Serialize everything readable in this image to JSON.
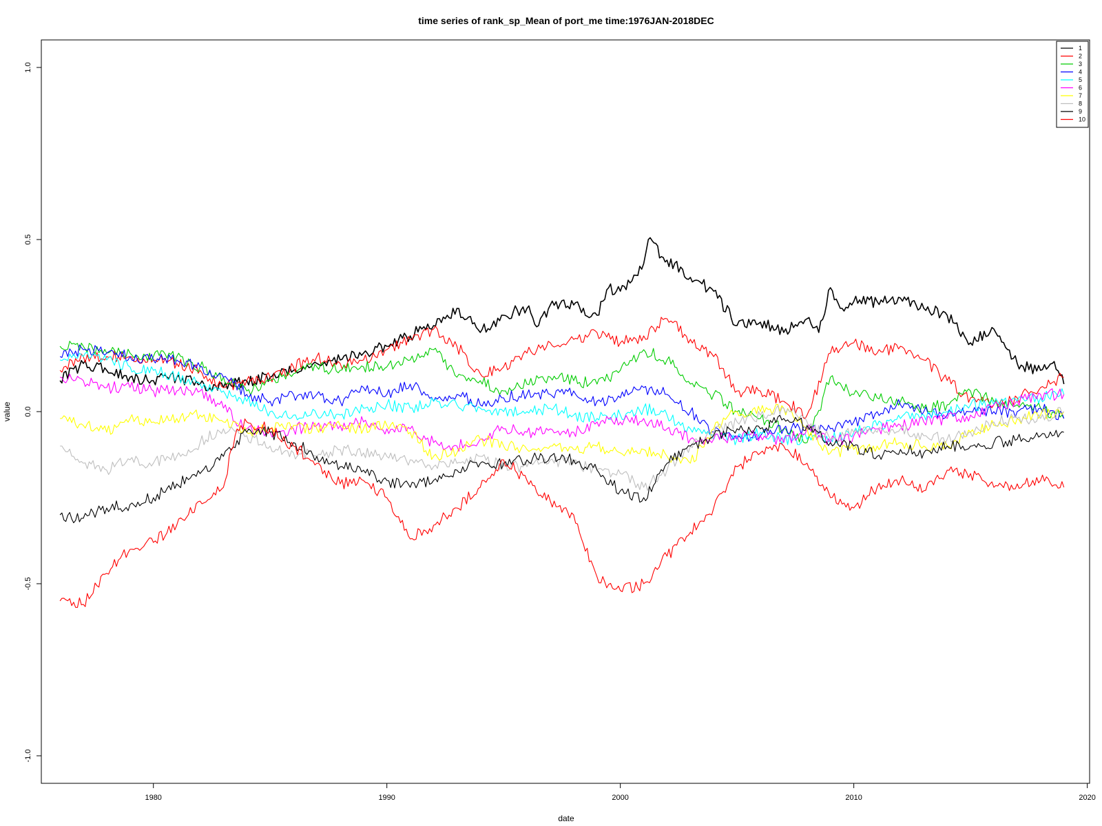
{
  "chart_data": {
    "type": "line",
    "title": "time series of rank_sp_Mean of port_me time:1976JAN-2018DEC",
    "xlabel": "date",
    "ylabel": "value",
    "xlim": [
      1975.2,
      2020.1
    ],
    "ylim": [
      -1.08,
      1.08
    ],
    "x_ticks": [
      1980,
      1990,
      2000,
      2010,
      2020
    ],
    "y_ticks": [
      -1.0,
      -0.5,
      0.0,
      0.5,
      1.0
    ],
    "legend_position": "top-right",
    "grid": false,
    "series": [
      {
        "name": "1",
        "color": "#000000",
        "stroke_width": 1.6,
        "x": [
          1976.0,
          1977.0,
          1978.0,
          1979.0,
          1980.0,
          1981.0,
          1982.0,
          1983.0,
          1984.0,
          1985.0,
          1986.0,
          1987.0,
          1988.0,
          1989.0,
          1990.0,
          1991.0,
          1991.5,
          1992.0,
          1992.5,
          1993.0,
          1994.0,
          1995.0,
          1996.0,
          1996.5,
          1997.0,
          1998.0,
          1999.0,
          1999.5,
          2000.0,
          2000.5,
          2001.0,
          2001.2,
          2002.0,
          2003.0,
          2004.0,
          2005.0,
          2006.0,
          2007.0,
          2008.0,
          2008.5,
          2009.0,
          2009.5,
          2010.0,
          2011.0,
          2012.0,
          2013.0,
          2014.0,
          2015.0,
          2016.0,
          2017.0,
          2018.0,
          2018.5,
          2019.0
        ],
        "y": [
          0.09,
          0.14,
          0.12,
          0.1,
          0.09,
          0.1,
          0.08,
          0.07,
          0.09,
          0.1,
          0.12,
          0.14,
          0.15,
          0.17,
          0.19,
          0.22,
          0.24,
          0.25,
          0.27,
          0.3,
          0.23,
          0.28,
          0.3,
          0.25,
          0.31,
          0.31,
          0.28,
          0.36,
          0.35,
          0.38,
          0.43,
          0.5,
          0.44,
          0.39,
          0.35,
          0.25,
          0.26,
          0.23,
          0.27,
          0.23,
          0.36,
          0.3,
          0.32,
          0.32,
          0.33,
          0.3,
          0.28,
          0.2,
          0.24,
          0.14,
          0.12,
          0.14,
          0.08
        ]
      },
      {
        "name": "2",
        "color": "#ff0000",
        "stroke_width": 1.1,
        "x": [
          1976.0,
          1977.0,
          1978.0,
          1979.0,
          1980.0,
          1981.0,
          1982.0,
          1983.0,
          1984.0,
          1985.0,
          1986.0,
          1987.0,
          1988.0,
          1989.0,
          1990.0,
          1991.0,
          1992.0,
          1993.0,
          1994.0,
          1995.0,
          1996.0,
          1997.0,
          1998.0,
          1999.0,
          2000.0,
          2001.0,
          2002.0,
          2003.0,
          2004.0,
          2005.0,
          2006.0,
          2007.0,
          2008.0,
          2009.0,
          2010.0,
          2011.0,
          2012.0,
          2013.0,
          2014.0,
          2015.0,
          2016.0,
          2017.0,
          2018.0,
          2019.0
        ],
        "y": [
          0.12,
          0.16,
          0.16,
          0.16,
          0.15,
          0.14,
          0.12,
          0.07,
          0.09,
          0.1,
          0.13,
          0.16,
          0.14,
          0.15,
          0.18,
          0.21,
          0.24,
          0.19,
          0.11,
          0.13,
          0.17,
          0.2,
          0.21,
          0.23,
          0.2,
          0.22,
          0.27,
          0.21,
          0.16,
          0.06,
          0.06,
          0.03,
          -0.01,
          0.17,
          0.2,
          0.17,
          0.19,
          0.15,
          0.09,
          0.04,
          0.02,
          0.04,
          0.07,
          0.1
        ]
      },
      {
        "name": "3",
        "color": "#00cc00",
        "stroke_width": 1.1,
        "x": [
          1976.0,
          1977.0,
          1978.0,
          1979.0,
          1980.0,
          1981.0,
          1982.0,
          1983.0,
          1984.0,
          1985.0,
          1986.0,
          1987.0,
          1988.0,
          1989.0,
          1990.0,
          1991.0,
          1992.0,
          1993.0,
          1994.0,
          1995.0,
          1996.0,
          1997.0,
          1998.0,
          1999.0,
          2000.0,
          2001.0,
          2002.0,
          2003.0,
          2004.0,
          2005.0,
          2006.0,
          2007.0,
          2008.0,
          2009.0,
          2010.0,
          2011.0,
          2012.0,
          2013.0,
          2014.0,
          2015.0,
          2016.0,
          2017.0,
          2018.0,
          2019.0
        ],
        "y": [
          0.19,
          0.19,
          0.17,
          0.17,
          0.16,
          0.16,
          0.13,
          0.1,
          0.06,
          0.09,
          0.11,
          0.13,
          0.12,
          0.13,
          0.13,
          0.15,
          0.18,
          0.1,
          0.09,
          0.06,
          0.08,
          0.1,
          0.09,
          0.08,
          0.12,
          0.18,
          0.15,
          0.08,
          0.05,
          0.0,
          -0.02,
          -0.05,
          -0.09,
          0.1,
          0.05,
          0.04,
          0.03,
          0.01,
          0.02,
          0.06,
          0.03,
          0.02,
          0.01,
          -0.02
        ]
      },
      {
        "name": "4",
        "color": "#0000ff",
        "stroke_width": 1.1,
        "x": [
          1976.0,
          1977.0,
          1978.0,
          1979.0,
          1980.0,
          1981.0,
          1982.0,
          1983.0,
          1984.0,
          1985.0,
          1986.0,
          1987.0,
          1988.0,
          1989.0,
          1990.0,
          1991.0,
          1992.0,
          1993.0,
          1994.0,
          1995.0,
          1996.0,
          1997.0,
          1998.0,
          1999.0,
          2000.0,
          2001.0,
          2002.0,
          2003.0,
          2004.0,
          2005.0,
          2006.0,
          2007.0,
          2008.0,
          2009.0,
          2010.0,
          2011.0,
          2012.0,
          2013.0,
          2014.0,
          2015.0,
          2016.0,
          2017.0,
          2018.0,
          2019.0
        ],
        "y": [
          0.16,
          0.18,
          0.17,
          0.16,
          0.15,
          0.15,
          0.13,
          0.1,
          0.05,
          0.03,
          0.05,
          0.05,
          0.03,
          0.07,
          0.05,
          0.08,
          0.03,
          0.05,
          0.02,
          0.04,
          0.05,
          0.05,
          0.06,
          0.03,
          0.04,
          0.07,
          0.05,
          0.0,
          -0.06,
          -0.08,
          -0.07,
          -0.05,
          -0.05,
          -0.05,
          -0.03,
          0.0,
          0.02,
          0.0,
          -0.01,
          0.0,
          0.0,
          0.0,
          0.01,
          -0.02
        ]
      },
      {
        "name": "5",
        "color": "#00ffff",
        "stroke_width": 1.1,
        "x": [
          1976.0,
          1977.0,
          1978.0,
          1979.0,
          1980.0,
          1981.0,
          1982.0,
          1983.0,
          1984.0,
          1985.0,
          1986.0,
          1987.0,
          1988.0,
          1989.0,
          1990.0,
          1991.0,
          1992.0,
          1993.0,
          1994.0,
          1995.0,
          1996.0,
          1997.0,
          1998.0,
          1999.0,
          2000.0,
          2001.0,
          2002.0,
          2003.0,
          2004.0,
          2005.0,
          2006.0,
          2007.0,
          2008.0,
          2009.0,
          2010.0,
          2011.0,
          2012.0,
          2013.0,
          2014.0,
          2015.0,
          2016.0,
          2017.0,
          2018.0,
          2019.0
        ],
        "y": [
          0.15,
          0.16,
          0.15,
          0.13,
          0.12,
          0.1,
          0.08,
          0.06,
          0.03,
          0.0,
          -0.01,
          -0.01,
          -0.01,
          0.01,
          0.02,
          0.01,
          0.03,
          0.02,
          0.01,
          0.0,
          0.0,
          0.01,
          -0.01,
          -0.02,
          -0.01,
          0.01,
          -0.01,
          -0.05,
          -0.08,
          -0.08,
          -0.06,
          -0.08,
          -0.08,
          -0.08,
          -0.06,
          -0.04,
          -0.02,
          -0.01,
          0.0,
          0.02,
          0.02,
          0.03,
          0.04,
          0.05
        ]
      },
      {
        "name": "6",
        "color": "#ff00ff",
        "stroke_width": 1.1,
        "x": [
          1976.0,
          1977.0,
          1978.0,
          1979.0,
          1980.0,
          1981.0,
          1982.0,
          1983.0,
          1984.0,
          1985.0,
          1986.0,
          1987.0,
          1988.0,
          1989.0,
          1990.0,
          1991.0,
          1992.0,
          1993.0,
          1994.0,
          1995.0,
          1996.0,
          1997.0,
          1998.0,
          1999.0,
          2000.0,
          2001.0,
          2002.0,
          2003.0,
          2004.0,
          2005.0,
          2006.0,
          2007.0,
          2008.0,
          2009.0,
          2010.0,
          2011.0,
          2012.0,
          2013.0,
          2014.0,
          2015.0,
          2016.0,
          2017.0,
          2018.0,
          2019.0
        ],
        "y": [
          0.1,
          0.09,
          0.07,
          0.07,
          0.06,
          0.06,
          0.06,
          0.01,
          -0.05,
          -0.06,
          -0.05,
          -0.04,
          -0.04,
          -0.03,
          -0.05,
          -0.05,
          -0.09,
          -0.1,
          -0.08,
          -0.05,
          -0.06,
          -0.05,
          -0.06,
          -0.03,
          -0.03,
          -0.02,
          -0.05,
          -0.08,
          -0.08,
          -0.07,
          -0.07,
          -0.09,
          -0.05,
          -0.09,
          -0.07,
          -0.05,
          -0.04,
          -0.03,
          -0.02,
          -0.01,
          0.02,
          0.03,
          0.05,
          0.05
        ]
      },
      {
        "name": "7",
        "color": "#ffff00",
        "stroke_width": 1.1,
        "x": [
          1976.0,
          1977.0,
          1978.0,
          1979.0,
          1980.0,
          1981.0,
          1982.0,
          1983.0,
          1984.0,
          1985.0,
          1986.0,
          1987.0,
          1988.0,
          1989.0,
          1990.0,
          1991.0,
          1992.0,
          1993.0,
          1994.0,
          1995.0,
          1996.0,
          1997.0,
          1998.0,
          1999.0,
          2000.0,
          2001.0,
          2002.0,
          2003.0,
          2004.0,
          2005.0,
          2006.0,
          2007.0,
          2008.0,
          2009.0,
          2010.0,
          2011.0,
          2012.0,
          2013.0,
          2014.0,
          2015.0,
          2016.0,
          2017.0,
          2018.0,
          2019.0
        ],
        "y": [
          -0.02,
          -0.04,
          -0.06,
          -0.02,
          -0.03,
          -0.02,
          -0.01,
          -0.03,
          -0.06,
          -0.05,
          -0.04,
          -0.05,
          -0.04,
          -0.05,
          -0.04,
          -0.06,
          -0.13,
          -0.12,
          -0.08,
          -0.1,
          -0.11,
          -0.1,
          -0.11,
          -0.1,
          -0.12,
          -0.11,
          -0.13,
          -0.15,
          -0.05,
          0.0,
          0.0,
          0.01,
          -0.05,
          -0.12,
          -0.11,
          -0.1,
          -0.09,
          -0.1,
          -0.1,
          -0.06,
          -0.04,
          -0.02,
          -0.01,
          0.0
        ]
      },
      {
        "name": "8",
        "color": "#bebebe",
        "stroke_width": 1.1,
        "x": [
          1976.0,
          1977.0,
          1978.0,
          1979.0,
          1980.0,
          1981.0,
          1982.0,
          1983.0,
          1984.0,
          1985.0,
          1986.0,
          1987.0,
          1988.0,
          1989.0,
          1990.0,
          1991.0,
          1992.0,
          1993.0,
          1994.0,
          1995.0,
          1996.0,
          1997.0,
          1998.0,
          1999.0,
          2000.0,
          2001.0,
          2002.0,
          2003.0,
          2004.0,
          2005.0,
          2006.0,
          2007.0,
          2008.0,
          2009.0,
          2010.0,
          2011.0,
          2012.0,
          2013.0,
          2014.0,
          2015.0,
          2016.0,
          2017.0,
          2018.0,
          2019.0
        ],
        "y": [
          -0.1,
          -0.15,
          -0.17,
          -0.14,
          -0.15,
          -0.13,
          -0.09,
          -0.05,
          -0.07,
          -0.1,
          -0.12,
          -0.13,
          -0.11,
          -0.12,
          -0.13,
          -0.14,
          -0.16,
          -0.15,
          -0.13,
          -0.16,
          -0.16,
          -0.14,
          -0.15,
          -0.17,
          -0.18,
          -0.22,
          -0.17,
          -0.1,
          -0.06,
          -0.03,
          -0.01,
          0.01,
          -0.03,
          -0.08,
          -0.06,
          -0.06,
          -0.05,
          -0.07,
          -0.08,
          -0.06,
          -0.03,
          -0.02,
          -0.02,
          0.0
        ]
      },
      {
        "name": "9",
        "color": "#000000",
        "stroke_width": 1.1,
        "x": [
          1976.0,
          1977.0,
          1978.0,
          1979.0,
          1980.0,
          1981.0,
          1982.0,
          1983.0,
          1984.0,
          1985.0,
          1986.0,
          1987.0,
          1988.0,
          1989.0,
          1990.0,
          1991.0,
          1992.0,
          1993.0,
          1994.0,
          1995.0,
          1996.0,
          1997.0,
          1998.0,
          1999.0,
          2000.0,
          2001.0,
          2002.0,
          2003.0,
          2004.0,
          2005.0,
          2006.0,
          2007.0,
          2008.0,
          2009.0,
          2010.0,
          2011.0,
          2012.0,
          2013.0,
          2014.0,
          2015.0,
          2016.0,
          2017.0,
          2018.0,
          2019.0
        ],
        "y": [
          -0.3,
          -0.31,
          -0.28,
          -0.27,
          -0.25,
          -0.21,
          -0.18,
          -0.13,
          -0.06,
          -0.06,
          -0.09,
          -0.13,
          -0.16,
          -0.17,
          -0.2,
          -0.22,
          -0.2,
          -0.17,
          -0.15,
          -0.15,
          -0.14,
          -0.13,
          -0.14,
          -0.17,
          -0.23,
          -0.25,
          -0.15,
          -0.1,
          -0.07,
          -0.05,
          -0.05,
          -0.02,
          -0.04,
          -0.09,
          -0.1,
          -0.13,
          -0.11,
          -0.12,
          -0.1,
          -0.1,
          -0.09,
          -0.08,
          -0.07,
          -0.06
        ]
      },
      {
        "name": "10",
        "color": "#ff0000",
        "stroke_width": 1.1,
        "x": [
          1976.0,
          1977.0,
          1978.0,
          1979.0,
          1980.0,
          1981.0,
          1982.0,
          1983.0,
          1983.5,
          1984.0,
          1985.0,
          1986.0,
          1987.0,
          1988.0,
          1989.0,
          1990.0,
          1991.0,
          1992.0,
          1993.0,
          1994.0,
          1995.0,
          1996.0,
          1997.0,
          1998.0,
          1999.0,
          2000.0,
          2001.0,
          2002.0,
          2003.0,
          2004.0,
          2005.0,
          2006.0,
          2007.0,
          2008.0,
          2009.0,
          2010.0,
          2011.0,
          2012.0,
          2013.0,
          2014.0,
          2015.0,
          2016.0,
          2017.0,
          2018.0,
          2019.0
        ],
        "y": [
          -0.55,
          -0.56,
          -0.47,
          -0.4,
          -0.38,
          -0.33,
          -0.26,
          -0.22,
          -0.07,
          -0.03,
          -0.05,
          -0.1,
          -0.15,
          -0.21,
          -0.2,
          -0.25,
          -0.37,
          -0.33,
          -0.28,
          -0.22,
          -0.14,
          -0.2,
          -0.26,
          -0.3,
          -0.48,
          -0.52,
          -0.5,
          -0.42,
          -0.35,
          -0.28,
          -0.16,
          -0.12,
          -0.1,
          -0.15,
          -0.25,
          -0.28,
          -0.22,
          -0.2,
          -0.23,
          -0.17,
          -0.18,
          -0.22,
          -0.21,
          -0.2,
          -0.22
        ]
      }
    ]
  }
}
